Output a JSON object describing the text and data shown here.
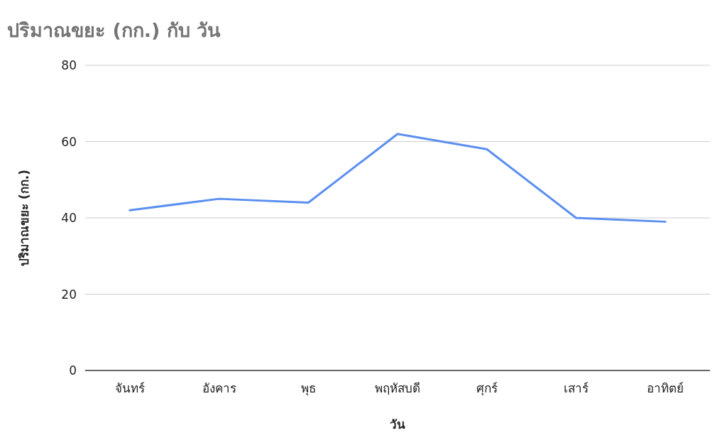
{
  "chart_data": {
    "type": "line",
    "title": "ปริมาณขยะ (กก.) กับ วัน",
    "xlabel": "วัน",
    "ylabel": "ปริมาณขยะ (กก.)",
    "categories": [
      "จันทร์",
      "อังคาร",
      "พุธ",
      "พฤหัสบดี",
      "ศุกร์",
      "เสาร์",
      "อาทิตย์"
    ],
    "series": [
      {
        "color": "#5b8ff0",
        "values": [
          42,
          45,
          44,
          62,
          58,
          40,
          39
        ]
      }
    ],
    "ylim": [
      0,
      80
    ],
    "yticks": [
      0,
      20,
      40,
      60,
      80
    ],
    "grid": "y"
  }
}
